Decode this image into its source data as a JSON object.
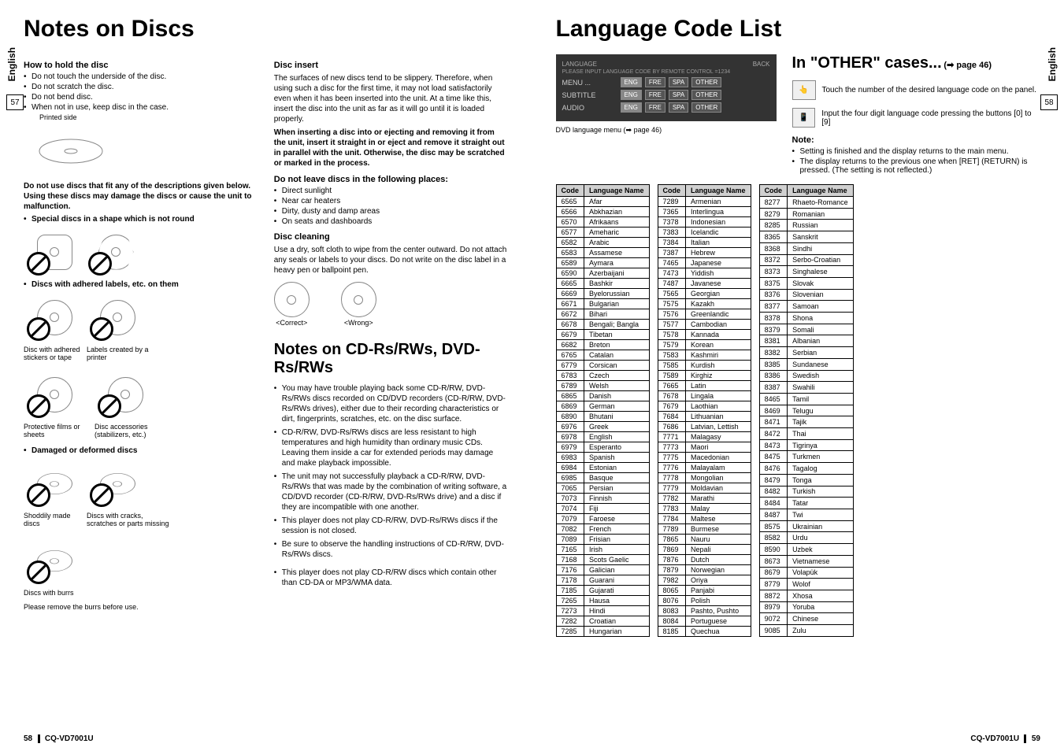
{
  "leftPage": {
    "verticalTab": "English",
    "pageNumBox": "57",
    "mainTitle": "Notes on Discs",
    "col1": {
      "howToHold": {
        "title": "How to hold the disc",
        "bullets": [
          "Do not touch the underside of the disc.",
          "Do not scratch the disc.",
          "Do not bend disc.",
          "When not in use, keep disc in the case."
        ],
        "printedSide": "Printed side"
      },
      "warning": "Do not use discs that fit any of the descriptions given below. Using these discs may damage the discs or cause the unit to malfunction.",
      "specialDiscs": "Special discs in a shape which is not round",
      "adheredLabels": "Discs with adhered labels, etc. on them",
      "captions": {
        "stickersOrTape": "Disc with adhered stickers or tape",
        "labelsPrinter": "Labels created by a printer",
        "protectiveFilms": "Protective films or sheets",
        "discAccessories": "Disc accessories (stabilizers, etc.)"
      },
      "damaged": "Damaged or deformed discs",
      "captions2": {
        "shoddy": "Shoddily made discs",
        "cracks": "Discs with cracks, scratches or parts missing",
        "burrs": "Discs with burrs",
        "burrsNote": "Please remove the burrs before use."
      }
    },
    "col2": {
      "discInsert": {
        "title": "Disc insert",
        "text": "The surfaces of new discs tend to be slippery. Therefore, when using such a disc for the first time, it may not load satisfactorily even when it has been inserted into the unit. At a time like this, insert the disc into the unit as far as it will go until it is loaded properly.",
        "bold": "When inserting a disc into or ejecting and removing it from the unit, insert it straight in or eject and remove it straight out in parallel with the unit. Otherwise, the disc may be scratched or marked in the process."
      },
      "doNotLeave": {
        "title": "Do not leave discs in the following places:",
        "bullets": [
          "Direct sunlight",
          "Near car heaters",
          "Dirty, dusty and damp areas",
          "On seats and dashboards"
        ]
      },
      "discCleaning": {
        "title": "Disc cleaning",
        "text": "Use a dry, soft cloth to wipe from the center outward. Do not attach any seals or labels to your discs. Do not write on the disc label in a heavy pen or ballpoint pen.",
        "correct": "<Correct>",
        "wrong": "<Wrong>"
      },
      "cdNotes": {
        "title": "Notes on CD-Rs/RWs, DVD-Rs/RWs",
        "bullets": [
          "You may have trouble playing back some CD-R/RW, DVD-Rs/RWs discs recorded on CD/DVD recorders (CD-R/RW, DVD-Rs/RWs drives), either due to their recording characteristics or dirt, fingerprints, scratches, etc. on the disc surface.",
          "CD-R/RW, DVD-Rs/RWs discs are less resistant to high temperatures and high humidity than ordinary music CDs. Leaving them inside a car for extended periods may damage and make playback impossible.",
          "The unit may not successfully playback a CD-R/RW, DVD-Rs/RWs that was made by the combination of writing software, a CD/DVD recorder (CD-R/RW, DVD-Rs/RWs drive) and a disc if they are incompatible with one another.",
          "This player does not play CD-R/RW, DVD-Rs/RWs discs if the session is not closed.",
          "Be sure to observe the handling instructions of CD-R/RW, DVD-Rs/RWs discs.",
          "This player does not play CD-R/RW discs which contain other than CD-DA or MP3/WMA data."
        ]
      }
    },
    "footer": {
      "pageNum": "58",
      "model": "CQ-VD7001U"
    }
  },
  "rightPage": {
    "verticalTab": "English",
    "pageNumBox": "58",
    "mainTitle": "Language Code List",
    "dvdMenu": {
      "header": "LANGUAGE",
      "headerRight": "BACK",
      "instruction": "PLEASE INPUT LANGUAGE CODE BY REMOTE CONTROL =1234",
      "rows": [
        {
          "label": "MENU ...",
          "buttons": [
            "ENG",
            "FRE",
            "SPA",
            "OTHER"
          ]
        },
        {
          "label": "SUBTITLE",
          "buttons": [
            "ENG",
            "FRE",
            "SPA",
            "OTHER"
          ]
        },
        {
          "label": "AUDIO",
          "buttons": [
            "ENG",
            "FRE",
            "SPA",
            "OTHER"
          ]
        }
      ],
      "caption": "DVD language menu (➡ page 46)"
    },
    "otherCases": {
      "title": "In \"OTHER\" cases...",
      "titleSuffix": "(➡ page 46)",
      "touchNote": "Touch the number of the desired language code on the panel.",
      "inputNote": "Input the four digit language code pressing the buttons [0] to [9]",
      "noteTitle": "Note:",
      "noteBullets": [
        "Setting is finished and the display returns to the main menu.",
        "The display returns to the previous one when [RET] (RETURN) is pressed. (The setting is not reflected.)"
      ]
    },
    "tableHeaders": {
      "code": "Code",
      "name": "Language Name"
    },
    "table1": [
      [
        "6565",
        "Afar"
      ],
      [
        "6566",
        "Abkhazian"
      ],
      [
        "6570",
        "Afrikaans"
      ],
      [
        "6577",
        "Ameharic"
      ],
      [
        "6582",
        "Arabic"
      ],
      [
        "6583",
        "Assamese"
      ],
      [
        "6589",
        "Aymara"
      ],
      [
        "6590",
        "Azerbaijani"
      ],
      [
        "6665",
        "Bashkir"
      ],
      [
        "6669",
        "Byelorussian"
      ],
      [
        "6671",
        "Bulgarian"
      ],
      [
        "6672",
        "Bihari"
      ],
      [
        "6678",
        "Bengali; Bangla"
      ],
      [
        "6679",
        "Tibetan"
      ],
      [
        "6682",
        "Breton"
      ],
      [
        "6765",
        "Catalan"
      ],
      [
        "6779",
        "Corsican"
      ],
      [
        "6783",
        "Czech"
      ],
      [
        "6789",
        "Welsh"
      ],
      [
        "6865",
        "Danish"
      ],
      [
        "6869",
        "German"
      ],
      [
        "6890",
        "Bhutani"
      ],
      [
        "6976",
        "Greek"
      ],
      [
        "6978",
        "English"
      ],
      [
        "6979",
        "Esperanto"
      ],
      [
        "6983",
        "Spanish"
      ],
      [
        "6984",
        "Estonian"
      ],
      [
        "6985",
        "Basque"
      ],
      [
        "7065",
        "Persian"
      ],
      [
        "7073",
        "Finnish"
      ],
      [
        "7074",
        "Fiji"
      ],
      [
        "7079",
        "Faroese"
      ],
      [
        "7082",
        "French"
      ],
      [
        "7089",
        "Frisian"
      ],
      [
        "7165",
        "Irish"
      ],
      [
        "7168",
        "Scots Gaelic"
      ],
      [
        "7176",
        "Galician"
      ],
      [
        "7178",
        "Guarani"
      ],
      [
        "7185",
        "Gujarati"
      ],
      [
        "7265",
        "Hausa"
      ],
      [
        "7273",
        "Hindi"
      ],
      [
        "7282",
        "Croatian"
      ],
      [
        "7285",
        "Hungarian"
      ]
    ],
    "table2": [
      [
        "7289",
        "Armenian"
      ],
      [
        "7365",
        "Interlingua"
      ],
      [
        "7378",
        "Indonesian"
      ],
      [
        "7383",
        "Icelandic"
      ],
      [
        "7384",
        "Italian"
      ],
      [
        "7387",
        "Hebrew"
      ],
      [
        "7465",
        "Japanese"
      ],
      [
        "7473",
        "Yiddish"
      ],
      [
        "7487",
        "Javanese"
      ],
      [
        "7565",
        "Georgian"
      ],
      [
        "7575",
        "Kazakh"
      ],
      [
        "7576",
        "Greenlandic"
      ],
      [
        "7577",
        "Cambodian"
      ],
      [
        "7578",
        "Kannada"
      ],
      [
        "7579",
        "Korean"
      ],
      [
        "7583",
        "Kashmiri"
      ],
      [
        "7585",
        "Kurdish"
      ],
      [
        "7589",
        "Kirghiz"
      ],
      [
        "7665",
        "Latin"
      ],
      [
        "7678",
        "Lingala"
      ],
      [
        "7679",
        "Laothian"
      ],
      [
        "7684",
        "Lithuanian"
      ],
      [
        "7686",
        "Latvian, Lettish"
      ],
      [
        "7771",
        "Malagasy"
      ],
      [
        "7773",
        "Maori"
      ],
      [
        "7775",
        "Macedonian"
      ],
      [
        "7776",
        "Malayalam"
      ],
      [
        "7778",
        "Mongolian"
      ],
      [
        "7779",
        "Moldavian"
      ],
      [
        "7782",
        "Marathi"
      ],
      [
        "7783",
        "Malay"
      ],
      [
        "7784",
        "Maltese"
      ],
      [
        "7789",
        "Burmese"
      ],
      [
        "7865",
        "Nauru"
      ],
      [
        "7869",
        "Nepali"
      ],
      [
        "7876",
        "Dutch"
      ],
      [
        "7879",
        "Norwegian"
      ],
      [
        "7982",
        "Oriya"
      ],
      [
        "8065",
        "Panjabi"
      ],
      [
        "8076",
        "Polish"
      ],
      [
        "8083",
        "Pashto, Pushto"
      ],
      [
        "8084",
        "Portuguese"
      ],
      [
        "8185",
        "Quechua"
      ]
    ],
    "table3": [
      [
        "8277",
        "Rhaeto-Romance"
      ],
      [
        "8279",
        "Romanian"
      ],
      [
        "8285",
        "Russian"
      ],
      [
        "8365",
        "Sanskrit"
      ],
      [
        "8368",
        "Sindhi"
      ],
      [
        "8372",
        "Serbo-Croatian"
      ],
      [
        "8373",
        "Singhalese"
      ],
      [
        "8375",
        "Slovak"
      ],
      [
        "8376",
        "Slovenian"
      ],
      [
        "8377",
        "Samoan"
      ],
      [
        "8378",
        "Shona"
      ],
      [
        "8379",
        "Somali"
      ],
      [
        "8381",
        "Albanian"
      ],
      [
        "8382",
        "Serbian"
      ],
      [
        "8385",
        "Sundanese"
      ],
      [
        "8386",
        "Swedish"
      ],
      [
        "8387",
        "Swahili"
      ],
      [
        "8465",
        "Tamil"
      ],
      [
        "8469",
        "Telugu"
      ],
      [
        "8471",
        "Tajik"
      ],
      [
        "8472",
        "Thai"
      ],
      [
        "8473",
        "Tigrinya"
      ],
      [
        "8475",
        "Turkmen"
      ],
      [
        "8476",
        "Tagalog"
      ],
      [
        "8479",
        "Tonga"
      ],
      [
        "8482",
        "Turkish"
      ],
      [
        "8484",
        "Tatar"
      ],
      [
        "8487",
        "Twi"
      ],
      [
        "8575",
        "Ukrainian"
      ],
      [
        "8582",
        "Urdu"
      ],
      [
        "8590",
        "Uzbek"
      ],
      [
        "8673",
        "Vietnamese"
      ],
      [
        "8679",
        "Volapük"
      ],
      [
        "8779",
        "Wolof"
      ],
      [
        "8872",
        "Xhosa"
      ],
      [
        "8979",
        "Yoruba"
      ],
      [
        "9072",
        "Chinese"
      ],
      [
        "9085",
        "Zulu"
      ]
    ],
    "footer": {
      "model": "CQ-VD7001U",
      "pageNum": "59"
    }
  }
}
